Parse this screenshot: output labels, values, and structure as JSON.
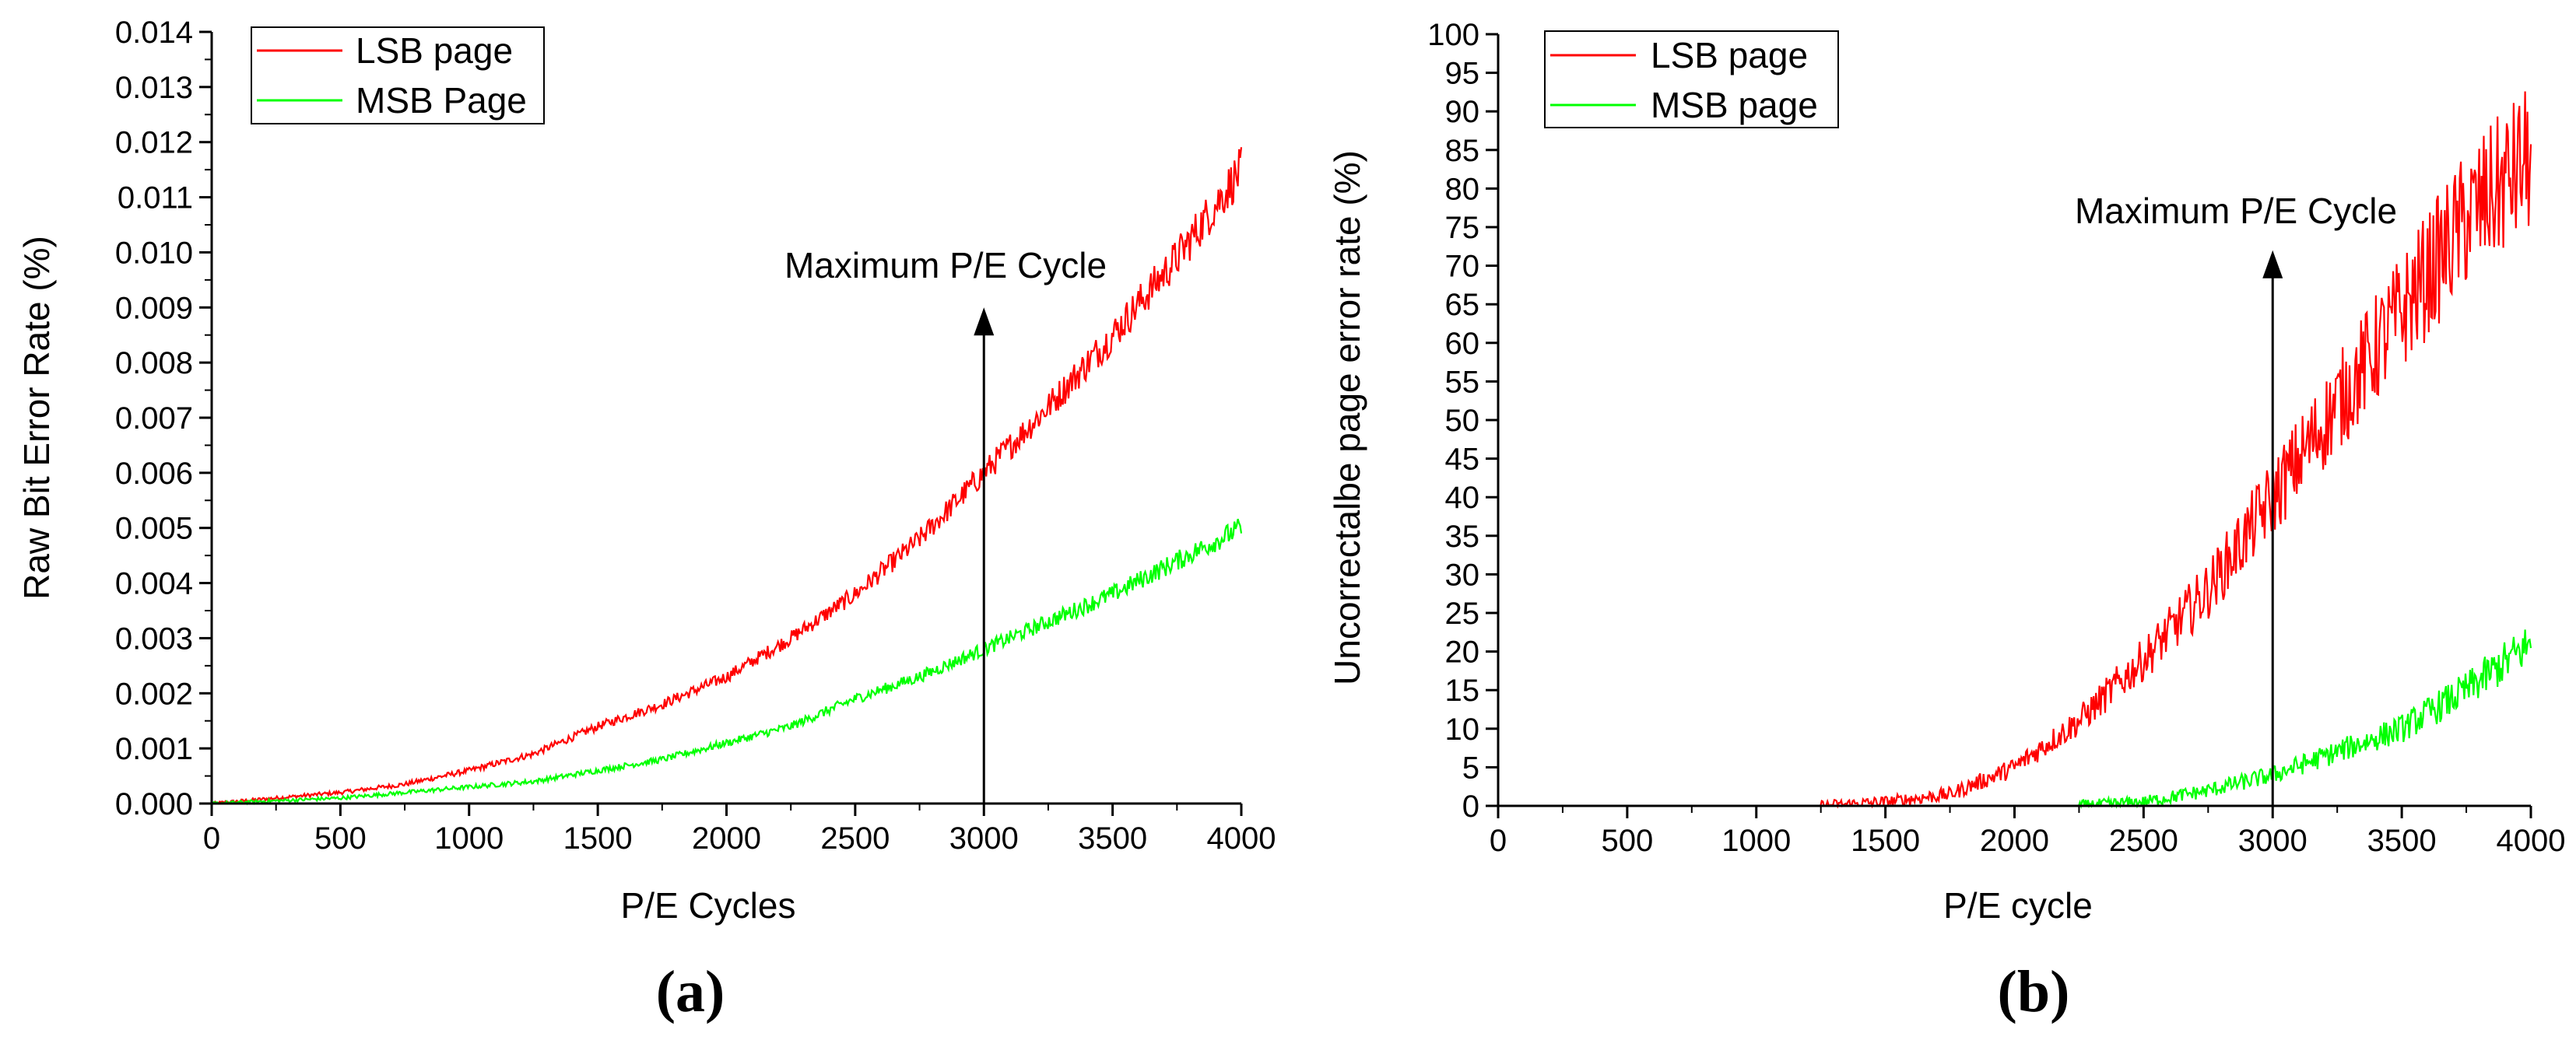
{
  "chart_data": [
    {
      "type": "line",
      "panel_label": "(a)",
      "xlabel": "P/E Cycles",
      "ylabel": "Raw Bit Error Rate (%)",
      "xlim": [
        0,
        4000
      ],
      "ylim": [
        0,
        0.014
      ],
      "x_ticks": [
        "0",
        "500",
        "1000",
        "1500",
        "2000",
        "2500",
        "3000",
        "3500",
        "4000"
      ],
      "y_ticks": [
        "0.000",
        "0.001",
        "0.002",
        "0.003",
        "0.004",
        "0.005",
        "0.006",
        "0.007",
        "0.008",
        "0.009",
        "0.010",
        "0.011",
        "0.012",
        "0.013",
        "0.014"
      ],
      "legend_position": "top-left",
      "annotation": {
        "text": "Maximum P/E Cycle",
        "x": 3000,
        "y_from": 0,
        "y_to": 0.009
      },
      "x": [
        0,
        250,
        500,
        750,
        1000,
        1250,
        1500,
        1750,
        2000,
        2250,
        2500,
        2750,
        3000,
        3250,
        3500,
        3750,
        4000
      ],
      "series": [
        {
          "name": "LSB page",
          "color": "#ff0000",
          "values": [
            0.0,
            0.0001,
            0.0002,
            0.00035,
            0.0006,
            0.0009,
            0.0014,
            0.0018,
            0.0023,
            0.003,
            0.0038,
            0.0048,
            0.006,
            0.0072,
            0.0085,
            0.0099,
            0.0115
          ]
        },
        {
          "name": "MSB Page",
          "color": "#00ff00",
          "values": [
            0.0,
            5e-05,
            0.0001,
            0.0002,
            0.0003,
            0.0004,
            0.0006,
            0.0008,
            0.0011,
            0.0014,
            0.0019,
            0.0023,
            0.0028,
            0.0033,
            0.0038,
            0.0044,
            0.005
          ]
        }
      ]
    },
    {
      "type": "line",
      "panel_label": "(b)",
      "xlabel": "P/E cycle",
      "ylabel": "Uncorrectalbe page error rate (%)",
      "xlim": [
        0,
        4000
      ],
      "ylim": [
        0,
        100
      ],
      "x_ticks": [
        "0",
        "500",
        "1000",
        "1500",
        "2000",
        "2500",
        "3000",
        "3500",
        "4000"
      ],
      "y_ticks": [
        "0",
        "5",
        "10",
        "15",
        "20",
        "25",
        "30",
        "35",
        "40",
        "45",
        "50",
        "55",
        "60",
        "65",
        "70",
        "75",
        "80",
        "85",
        "90",
        "95",
        "100"
      ],
      "legend_position": "top-left",
      "annotation": {
        "text": "Maximum P/E Cycle",
        "x": 3000,
        "y_from": 0,
        "y_to": 72
      },
      "x": [
        0,
        250,
        500,
        750,
        1000,
        1250,
        1500,
        1750,
        2000,
        2250,
        2500,
        2750,
        3000,
        3250,
        3500,
        3750,
        4000
      ],
      "series": [
        {
          "name": "LSB page",
          "color": "#ff0000",
          "values": [
            0,
            0,
            0,
            0,
            0,
            0,
            0.5,
            1.5,
            5,
            11,
            19,
            28,
            40,
            52,
            64,
            76,
            84
          ]
        },
        {
          "name": "MSB page",
          "color": "#00ff00",
          "values": [
            0,
            0,
            0,
            0,
            0,
            0,
            0,
            0,
            0,
            0,
            0.5,
            2,
            4,
            7,
            10,
            15,
            21
          ]
        }
      ]
    }
  ]
}
